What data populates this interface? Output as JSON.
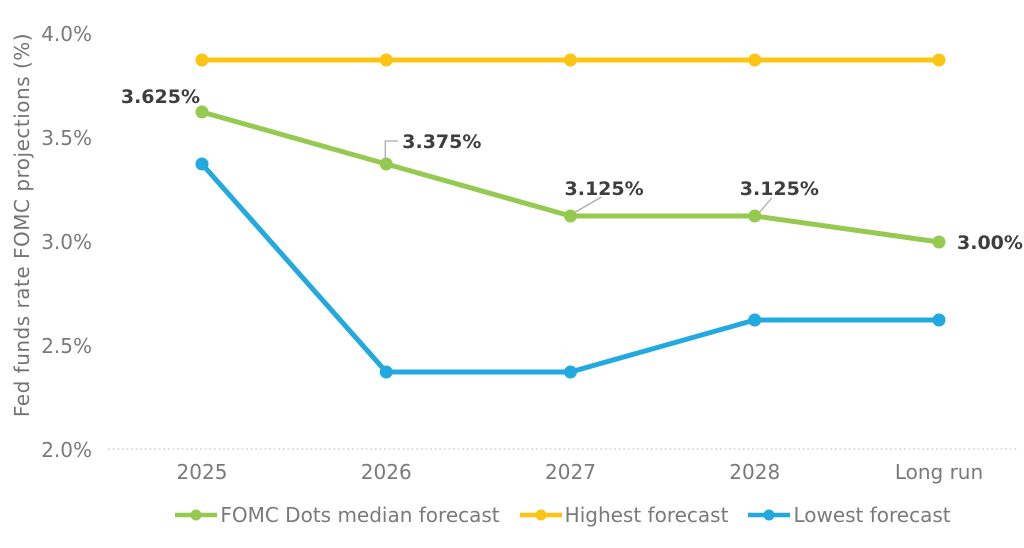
{
  "chart_data": {
    "type": "line",
    "title": "",
    "xlabel": "",
    "ylabel": "Fed funds rate FOMC projections (%)",
    "categories": [
      "2025",
      "2026",
      "2027",
      "2028",
      "Long run"
    ],
    "ylim": [
      2.0,
      4.0
    ],
    "grid": false,
    "legend_position": "bottom",
    "y_ticks": [
      {
        "label": "4.0%",
        "value": 4.0
      },
      {
        "label": "3.5%",
        "value": 3.5
      },
      {
        "label": "3.0%",
        "value": 3.0
      },
      {
        "label": "2.5%",
        "value": 2.5
      },
      {
        "label": "2.0%",
        "value": 2.0
      }
    ],
    "series": [
      {
        "name": "FOMC Dots median forecast",
        "color": "#95C950",
        "values": [
          3.625,
          3.375,
          3.125,
          3.125,
          3.0
        ],
        "labels": [
          {
            "text": "3.625%",
            "anchor": "end",
            "dx": -2,
            "dy": -9
          },
          {
            "text": "3.375%",
            "anchor": "start",
            "dx": 16,
            "dy": -16,
            "leader": [
              [
                -1,
                -4
              ],
              [
                -1,
                -23
              ],
              [
                12,
                -23
              ]
            ]
          },
          {
            "text": "3.125%",
            "anchor": "start",
            "dx": -6,
            "dy": -21,
            "leader": [
              [
                5,
                -4
              ],
              [
                31,
                -19
              ]
            ]
          },
          {
            "text": "3.125%",
            "anchor": "start",
            "dx": -15,
            "dy": -21,
            "leader": [
              [
                5,
                -4
              ],
              [
                17,
                -18
              ]
            ]
          },
          {
            "text": "3.00%",
            "anchor": "start",
            "dx": 18,
            "dy": 7
          }
        ]
      },
      {
        "name": "Highest forecast",
        "color": "#FDC513",
        "values": [
          3.875,
          3.875,
          3.875,
          3.875,
          3.875
        ]
      },
      {
        "name": "Lowest forecast",
        "color": "#22A9E0",
        "values": [
          3.375,
          2.375,
          2.375,
          2.625,
          2.625
        ]
      }
    ],
    "text_color": "#7A7A7A",
    "label_color": "#3E3E3E",
    "leader_color": "#ABABAB",
    "axis_line_color": "#D8D8D8"
  }
}
